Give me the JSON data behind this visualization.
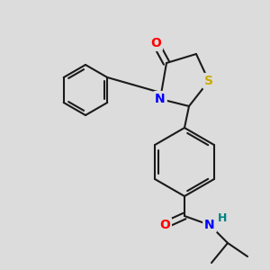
{
  "bg_color": "#dcdcdc",
  "bond_color": "#1a1a1a",
  "bond_width": 1.5,
  "atom_colors": {
    "O": "#ff0000",
    "N": "#0000ff",
    "S": "#ccaa00",
    "H": "#008080",
    "C": "#1a1a1a"
  },
  "font_size": 10,
  "fig_size": [
    3.0,
    3.0
  ],
  "dpi": 100
}
